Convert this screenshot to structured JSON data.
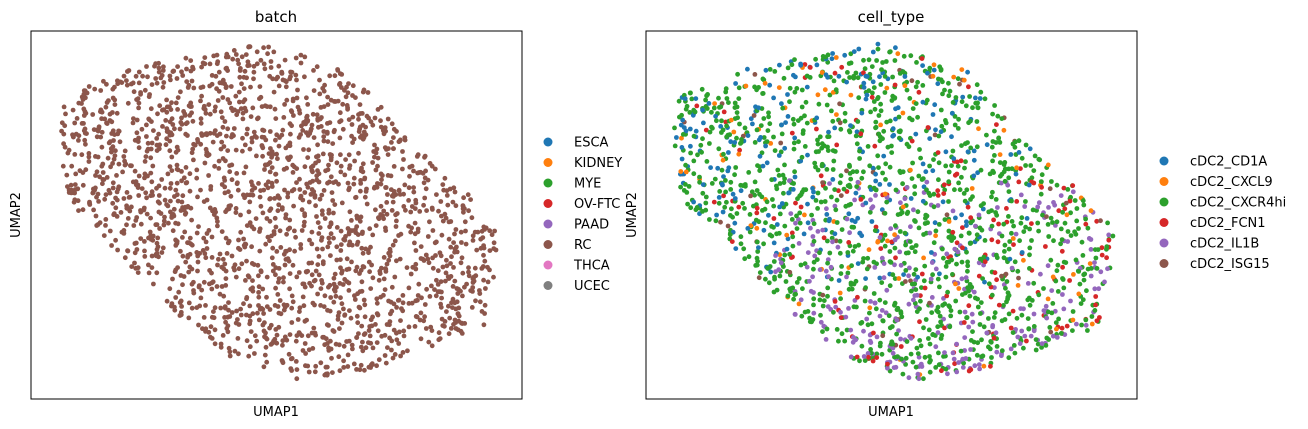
{
  "chart_data": [
    {
      "type": "scatter",
      "title": "batch",
      "xlabel": "UMAP1",
      "ylabel": "UMAP2",
      "grid": false,
      "ticks": false,
      "legend_placement": "right",
      "legend": [
        {
          "label": "ESCA",
          "color": "#1f77b4"
        },
        {
          "label": "KIDNEY",
          "color": "#ff7f0e"
        },
        {
          "label": "MYE",
          "color": "#2ca02c"
        },
        {
          "label": "OV-FTC",
          "color": "#d62728"
        },
        {
          "label": "PAAD",
          "color": "#9467bd"
        },
        {
          "label": "RC",
          "color": "#8c564b"
        },
        {
          "label": "THCA",
          "color": "#e377c2"
        },
        {
          "label": "UCEC",
          "color": "#7f7f7f"
        }
      ],
      "point_counts": {
        "RC": 2000
      },
      "point_cloud": {
        "shape": "polygon",
        "vertices": [
          [
            0.02,
            0.83
          ],
          [
            0.2,
            0.93
          ],
          [
            0.48,
            1.0
          ],
          [
            0.66,
            0.92
          ],
          [
            0.78,
            0.73
          ],
          [
            0.91,
            0.56
          ],
          [
            0.98,
            0.45
          ],
          [
            0.95,
            0.18
          ],
          [
            0.7,
            0.05
          ],
          [
            0.55,
            0.02
          ],
          [
            0.4,
            0.09
          ],
          [
            0.28,
            0.22
          ],
          [
            0.05,
            0.55
          ]
        ]
      }
    },
    {
      "type": "scatter",
      "title": "cell_type",
      "xlabel": "UMAP1",
      "ylabel": "UMAP2",
      "grid": false,
      "ticks": false,
      "legend_placement": "right",
      "legend": [
        {
          "label": "cDC2_CD1A",
          "color": "#1f77b4"
        },
        {
          "label": "cDC2_CXCL9",
          "color": "#ff7f0e"
        },
        {
          "label": "cDC2_CXCR4hi",
          "color": "#2ca02c"
        },
        {
          "label": "cDC2_FCN1",
          "color": "#d62728"
        },
        {
          "label": "cDC2_IL1B",
          "color": "#9467bd"
        },
        {
          "label": "cDC2_ISG15",
          "color": "#8c564b"
        }
      ],
      "point_counts": {
        "cDC2_CD1A": 260,
        "cDC2_CXCL9": 90,
        "cDC2_CXCR4hi": 1150,
        "cDC2_FCN1": 160,
        "cDC2_IL1B": 290,
        "cDC2_ISG15": 50
      },
      "point_cloud": {
        "shape": "polygon",
        "vertices": [
          [
            0.02,
            0.83
          ],
          [
            0.2,
            0.93
          ],
          [
            0.48,
            1.0
          ],
          [
            0.66,
            0.92
          ],
          [
            0.78,
            0.73
          ],
          [
            0.91,
            0.56
          ],
          [
            0.98,
            0.45
          ],
          [
            0.95,
            0.18
          ],
          [
            0.7,
            0.05
          ],
          [
            0.55,
            0.02
          ],
          [
            0.4,
            0.09
          ],
          [
            0.28,
            0.22
          ],
          [
            0.05,
            0.55
          ]
        ]
      }
    }
  ]
}
